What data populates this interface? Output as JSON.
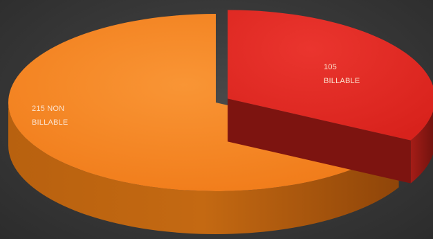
{
  "chart_data": {
    "type": "pie",
    "title": "",
    "slices": [
      {
        "label": "BILLABLE",
        "value": 105,
        "label_lines": [
          "105",
          "BILLABLE"
        ],
        "color": "#e52a24",
        "side_color": "#8e1a14"
      },
      {
        "label": "NON BILLABLE",
        "value": 215,
        "label_lines": [
          "215 NON",
          "BILLABLE"
        ],
        "color": "#f58220",
        "side_color": "#a9520e"
      }
    ],
    "exploded": "BILLABLE",
    "style": "3d"
  }
}
